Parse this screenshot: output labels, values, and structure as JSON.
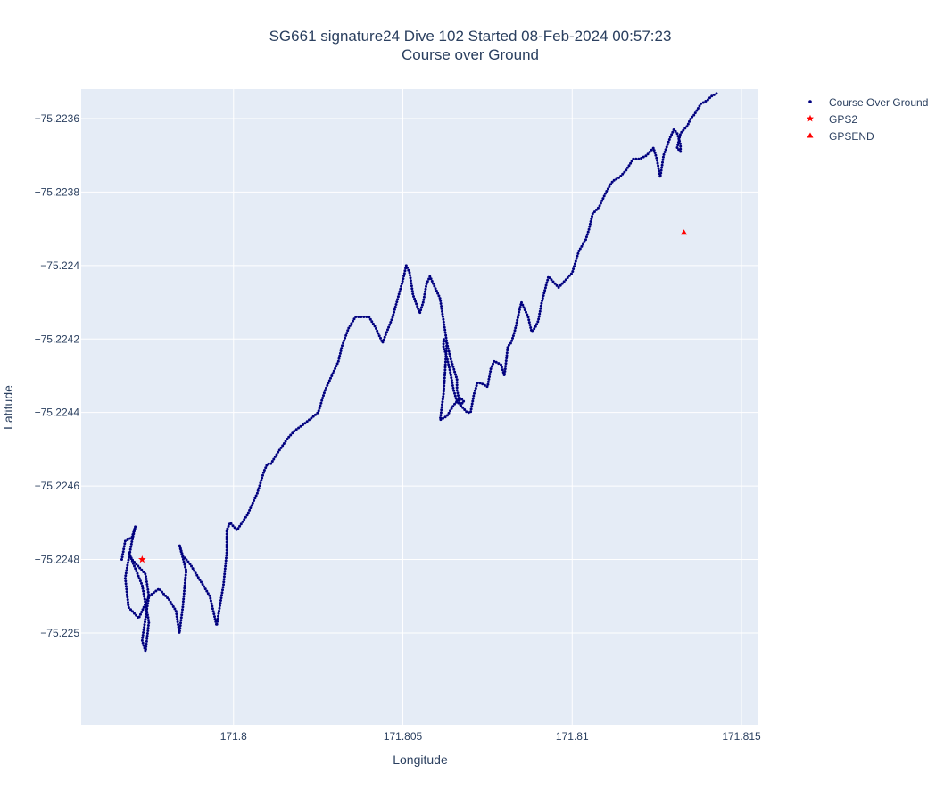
{
  "chart_data": {
    "type": "scatter",
    "title": "SG661 signature24 Dive 102 Started 08-Feb-2024 00:57:23",
    "subtitle": "Course over Ground",
    "xlabel": "Longitude",
    "ylabel": "Latitude",
    "xlim": [
      171.7955,
      171.8155
    ],
    "ylim": [
      -75.22525,
      -75.22352
    ],
    "xticks": [
      171.8,
      171.805,
      171.81,
      171.815
    ],
    "xtick_labels": [
      "171.8",
      "171.805",
      "171.81",
      "171.815"
    ],
    "yticks": [
      -75.2236,
      -75.2238,
      -75.224,
      -75.2242,
      -75.2244,
      -75.2246,
      -75.2248,
      -75.225
    ],
    "ytick_labels": [
      "−75.2236",
      "−75.2238",
      "−75.224",
      "−75.2242",
      "−75.2244",
      "−75.2246",
      "−75.2248",
      "−75.225"
    ],
    "grid": true,
    "legend_position": "top-right",
    "series": [
      {
        "name": "Course Over Ground",
        "marker": "dot",
        "color": "#00007f",
        "path_x": [
          171.7967,
          171.7968,
          171.797,
          171.7971,
          171.797,
          171.7968,
          171.7969,
          171.7972,
          171.7975,
          171.7974,
          171.797,
          171.7969,
          171.7973,
          171.7975,
          171.7974,
          171.7973,
          171.7975,
          171.7978,
          171.7981,
          171.7983,
          171.7984,
          171.7985,
          171.7986,
          171.7984,
          171.7985,
          171.7987,
          171.7989,
          171.7991,
          171.7993,
          171.7995,
          171.7997,
          171.7998,
          171.7998,
          171.7999,
          171.8001,
          171.8004,
          171.8007,
          171.8009,
          171.801,
          171.8011,
          171.8013,
          171.8016,
          171.8018,
          171.8021,
          171.8025,
          171.8027,
          171.8029,
          171.8031,
          171.8032,
          171.8034,
          171.8036,
          171.8038,
          171.804,
          171.8042,
          171.8044,
          171.8047,
          171.805,
          171.8051,
          171.8052,
          171.8053,
          171.8055,
          171.8056,
          171.8057,
          171.8058,
          171.8059,
          171.8061,
          171.8063,
          171.8062,
          171.8061,
          171.8063,
          171.8065,
          171.8067,
          171.8068,
          171.8067,
          171.8066,
          171.8065,
          171.8064,
          171.8063,
          171.8062,
          171.8062,
          171.8063,
          171.8064,
          171.8065,
          171.8066,
          171.8066,
          171.8067,
          171.8069,
          171.807,
          171.8071,
          171.8072,
          171.8073,
          171.8075,
          171.8076,
          171.8077,
          171.8079,
          171.808,
          171.8081,
          171.8082,
          171.8083,
          171.8085,
          171.8087,
          171.8088,
          171.8089,
          171.809,
          171.8091,
          171.8093,
          171.8095,
          171.8096,
          171.8097,
          171.8098,
          171.81,
          171.8102,
          171.8104,
          171.8105,
          171.8106,
          171.8108,
          171.811,
          171.8112,
          171.8114,
          171.8116,
          171.8118,
          171.812,
          171.8122,
          171.8124,
          171.8125,
          171.8126,
          171.8127,
          171.8129,
          171.813,
          171.8131,
          171.8132,
          171.8132,
          171.8131,
          171.8132,
          171.8134,
          171.8135,
          171.8136,
          171.8138,
          171.814,
          171.8141,
          171.8143,
          171.8145,
          171.8147
        ],
        "path_y": [
          -75.2248,
          -75.22475,
          -75.22474,
          -75.22471,
          -75.22475,
          -75.22485,
          -75.22493,
          -75.22496,
          -75.2249,
          -75.22484,
          -75.2248,
          -75.22478,
          -75.22487,
          -75.22497,
          -75.22505,
          -75.22502,
          -75.2249,
          -75.22488,
          -75.22491,
          -75.22494,
          -75.225,
          -75.22493,
          -75.22483,
          -75.22476,
          -75.22479,
          -75.22481,
          -75.22484,
          -75.22487,
          -75.2249,
          -75.22498,
          -75.22487,
          -75.22478,
          -75.22472,
          -75.2247,
          -75.22472,
          -75.22468,
          -75.22462,
          -75.22456,
          -75.22454,
          -75.22454,
          -75.22451,
          -75.22447,
          -75.22445,
          -75.22443,
          -75.2244,
          -75.22434,
          -75.2243,
          -75.22426,
          -75.22422,
          -75.22417,
          -75.22414,
          -75.22414,
          -75.22414,
          -75.22417,
          -75.22421,
          -75.22414,
          -75.22404,
          -75.224,
          -75.22402,
          -75.22408,
          -75.22413,
          -75.2241,
          -75.22405,
          -75.22403,
          -75.22405,
          -75.22409,
          -75.22421,
          -75.22435,
          -75.22442,
          -75.22441,
          -75.22438,
          -75.22436,
          -75.22437,
          -75.22438,
          -75.22437,
          -75.22434,
          -75.22429,
          -75.22425,
          -75.22422,
          -75.2242,
          -75.22421,
          -75.22425,
          -75.22428,
          -75.22431,
          -75.22434,
          -75.22438,
          -75.2244,
          -75.2244,
          -75.22435,
          -75.22432,
          -75.22432,
          -75.22433,
          -75.22428,
          -75.22426,
          -75.22427,
          -75.2243,
          -75.22422,
          -75.22421,
          -75.22418,
          -75.2241,
          -75.22414,
          -75.22418,
          -75.22417,
          -75.22415,
          -75.2241,
          -75.22403,
          -75.22405,
          -75.22406,
          -75.22405,
          -75.22404,
          -75.22402,
          -75.22396,
          -75.22393,
          -75.2239,
          -75.22386,
          -75.22384,
          -75.2238,
          -75.22377,
          -75.22376,
          -75.22374,
          -75.22371,
          -75.22371,
          -75.2237,
          -75.22368,
          -75.22371,
          -75.22376,
          -75.2237,
          -75.22365,
          -75.22363,
          -75.22364,
          -75.22367,
          -75.22369,
          -75.22368,
          -75.22364,
          -75.22362,
          -75.2236,
          -75.22359,
          -75.22356,
          -75.22355,
          -75.22354,
          -75.22353
        ]
      },
      {
        "name": "GPS2",
        "marker": "star",
        "color": "#ff0000",
        "x": [
          171.7973
        ],
        "y": [
          -75.2248
        ]
      },
      {
        "name": "GPSEND",
        "marker": "triangle",
        "color": "#ff0000",
        "x": [
          171.8133
        ],
        "y": [
          -75.22391
        ]
      }
    ],
    "colors": {
      "plot_bg": "#e5ecf6",
      "grid": "#ffffff",
      "text": "#2a3f5f"
    }
  }
}
